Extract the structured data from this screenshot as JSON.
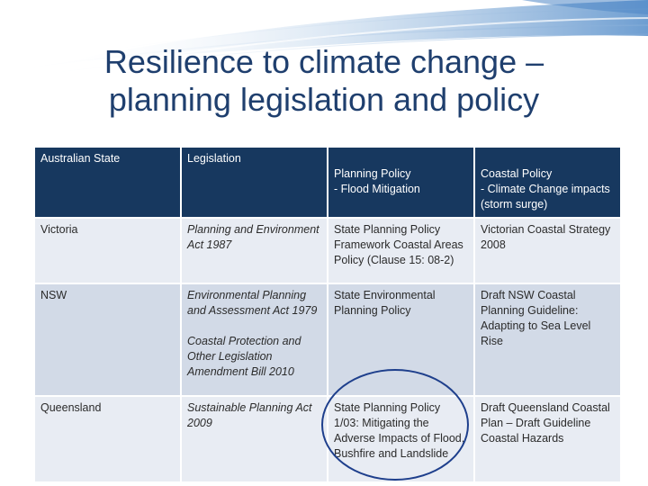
{
  "title": {
    "line1": "Resilience to climate change –",
    "line2": "planning legislation and policy"
  },
  "table": {
    "headers": [
      "Australian State",
      "Legislation",
      "Planning Policy\n- Flood Mitigation",
      "Coastal Policy\n- Climate Change impacts (storm surge)"
    ],
    "rows": [
      {
        "state": "Victoria",
        "legislation": "Planning and Environment Act 1987",
        "planning": "State Planning Policy Framework Coastal Areas Policy (Clause 15: 08-2)",
        "coastal": "Victorian Coastal Strategy 2008"
      },
      {
        "state": "NSW",
        "legislation": "Environmental Planning and Assessment Act 1979",
        "legislation2": "Coastal Protection and Other Legislation Amendment Bill 2010",
        "planning": "State Environmental Planning Policy",
        "coastal": "Draft NSW Coastal Planning Guideline: Adapting to Sea Level Rise"
      },
      {
        "state": "Queensland",
        "legislation": "Sustainable Planning Act 2009",
        "planning": "State Planning Policy 1/03: Mitigating the Adverse Impacts of Flood, Bushfire and Landslide",
        "coastal": "Draft Queensland Coastal Plan – Draft Guideline Coastal Hazards"
      }
    ]
  },
  "colors": {
    "header_bg": "#17385f",
    "row_light": "#e8ecf3",
    "row_mid": "#d2dae7",
    "title": "#1f3f6e",
    "circle": "#1e3f8c"
  }
}
